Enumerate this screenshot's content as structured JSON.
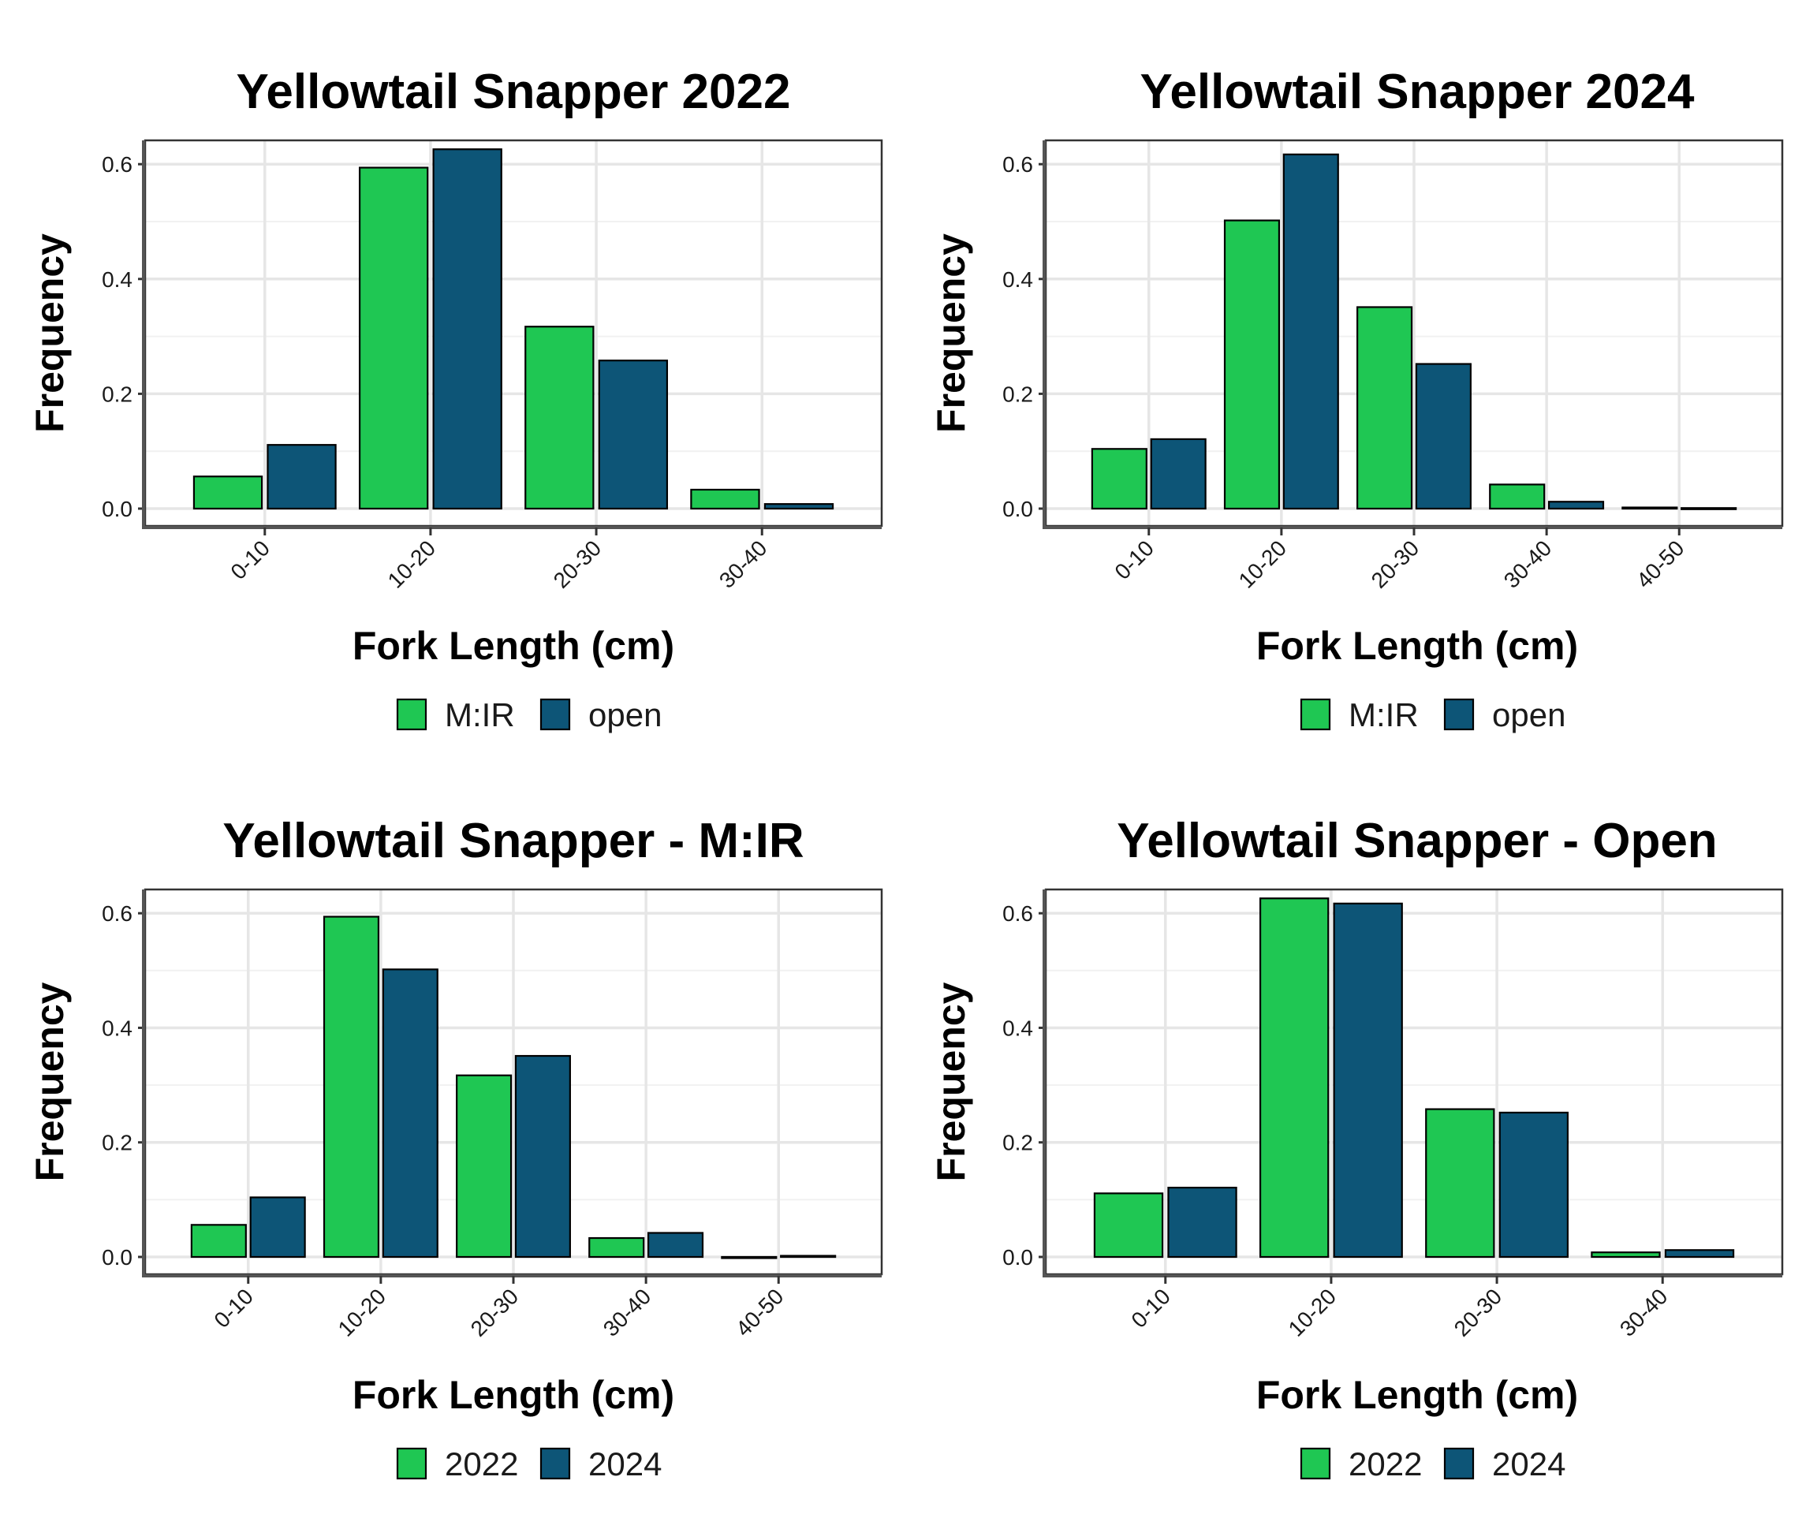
{
  "chart_data": [
    {
      "type": "bar",
      "title": "Yellowtail Snapper 2022",
      "xlabel": "Fork Length (cm)",
      "ylabel": "Frequency",
      "categories": [
        "0-10",
        "10-20",
        "20-30",
        "30-40"
      ],
      "yticks": [
        "0.0",
        "0.2",
        "0.4",
        "0.6"
      ],
      "ylim": [
        0,
        0.65
      ],
      "grid": true,
      "legend_position": "bottom",
      "series": [
        {
          "name": "M:IR",
          "color": "#1fc753",
          "values": [
            0.056,
            0.594,
            0.317,
            0.033
          ]
        },
        {
          "name": "open",
          "color": "#0d5577",
          "values": [
            0.111,
            0.626,
            0.258,
            0.008
          ]
        }
      ]
    },
    {
      "type": "bar",
      "title": "Yellowtail Snapper 2024",
      "xlabel": "Fork Length (cm)",
      "ylabel": "Frequency",
      "categories": [
        "0-10",
        "10-20",
        "20-30",
        "30-40",
        "40-50"
      ],
      "yticks": [
        "0.0",
        "0.2",
        "0.4",
        "0.6"
      ],
      "ylim": [
        0,
        0.65
      ],
      "grid": true,
      "legend_position": "bottom",
      "series": [
        {
          "name": "M:IR",
          "color": "#1fc753",
          "values": [
            0.104,
            0.502,
            0.351,
            0.042,
            0.002
          ]
        },
        {
          "name": "open",
          "color": "#0d5577",
          "values": [
            0.121,
            0.617,
            0.252,
            0.012,
            0.001
          ]
        }
      ]
    },
    {
      "type": "bar",
      "title": "Yellowtail Snapper - M:IR",
      "xlabel": "Fork Length (cm)",
      "ylabel": "Frequency",
      "categories": [
        "0-10",
        "10-20",
        "20-30",
        "30-40",
        "40-50"
      ],
      "yticks": [
        "0.0",
        "0.2",
        "0.4",
        "0.6"
      ],
      "ylim": [
        0,
        0.65
      ],
      "grid": true,
      "legend_position": "bottom",
      "series": [
        {
          "name": "2022",
          "color": "#1fc753",
          "values": [
            0.056,
            0.594,
            0.317,
            0.033,
            0.0
          ]
        },
        {
          "name": "2024",
          "color": "#0d5577",
          "values": [
            0.104,
            0.502,
            0.351,
            0.042,
            0.002
          ]
        }
      ]
    },
    {
      "type": "bar",
      "title": "Yellowtail Snapper - Open",
      "xlabel": "Fork Length (cm)",
      "ylabel": "Frequency",
      "categories": [
        "0-10",
        "10-20",
        "20-30",
        "30-40"
      ],
      "yticks": [
        "0.0",
        "0.2",
        "0.4",
        "0.6"
      ],
      "ylim": [
        0,
        0.65
      ],
      "grid": true,
      "legend_position": "bottom",
      "series": [
        {
          "name": "2022",
          "color": "#1fc753",
          "values": [
            0.111,
            0.626,
            0.258,
            0.008
          ]
        },
        {
          "name": "2024",
          "color": "#0d5577",
          "values": [
            0.121,
            0.617,
            0.252,
            0.012
          ]
        }
      ]
    }
  ]
}
